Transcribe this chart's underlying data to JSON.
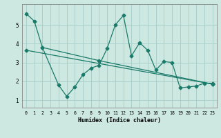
{
  "title": "",
  "xlabel": "Humidex (Indice chaleur)",
  "ylabel": "",
  "bg_color": "#cce8e0",
  "grid_color": "#aacfca",
  "line_color": "#1a7a6a",
  "xlim": [
    -0.5,
    23.5
  ],
  "ylim": [
    0.6,
    6.1
  ],
  "yticks": [
    1,
    2,
    3,
    4,
    5
  ],
  "xticks": [
    0,
    1,
    2,
    3,
    4,
    5,
    6,
    7,
    8,
    9,
    10,
    11,
    12,
    13,
    14,
    15,
    16,
    17,
    18,
    19,
    20,
    21,
    22,
    23
  ],
  "line1_x": [
    0,
    1,
    2,
    4,
    5,
    6,
    7,
    8,
    9,
    10,
    11,
    12,
    13,
    14,
    15,
    16,
    17,
    18,
    19,
    20,
    21,
    22,
    23
  ],
  "line1_y": [
    5.6,
    5.2,
    3.8,
    1.8,
    1.2,
    1.7,
    2.35,
    2.7,
    2.85,
    3.75,
    5.0,
    5.5,
    3.35,
    4.05,
    3.65,
    2.6,
    3.05,
    3.0,
    1.65,
    1.7,
    1.75,
    1.9,
    1.9
  ],
  "line2_x": [
    2,
    9,
    23
  ],
  "line2_y": [
    3.8,
    3.1,
    1.85
  ],
  "line3_x": [
    0,
    23
  ],
  "line3_y": [
    3.65,
    1.85
  ]
}
